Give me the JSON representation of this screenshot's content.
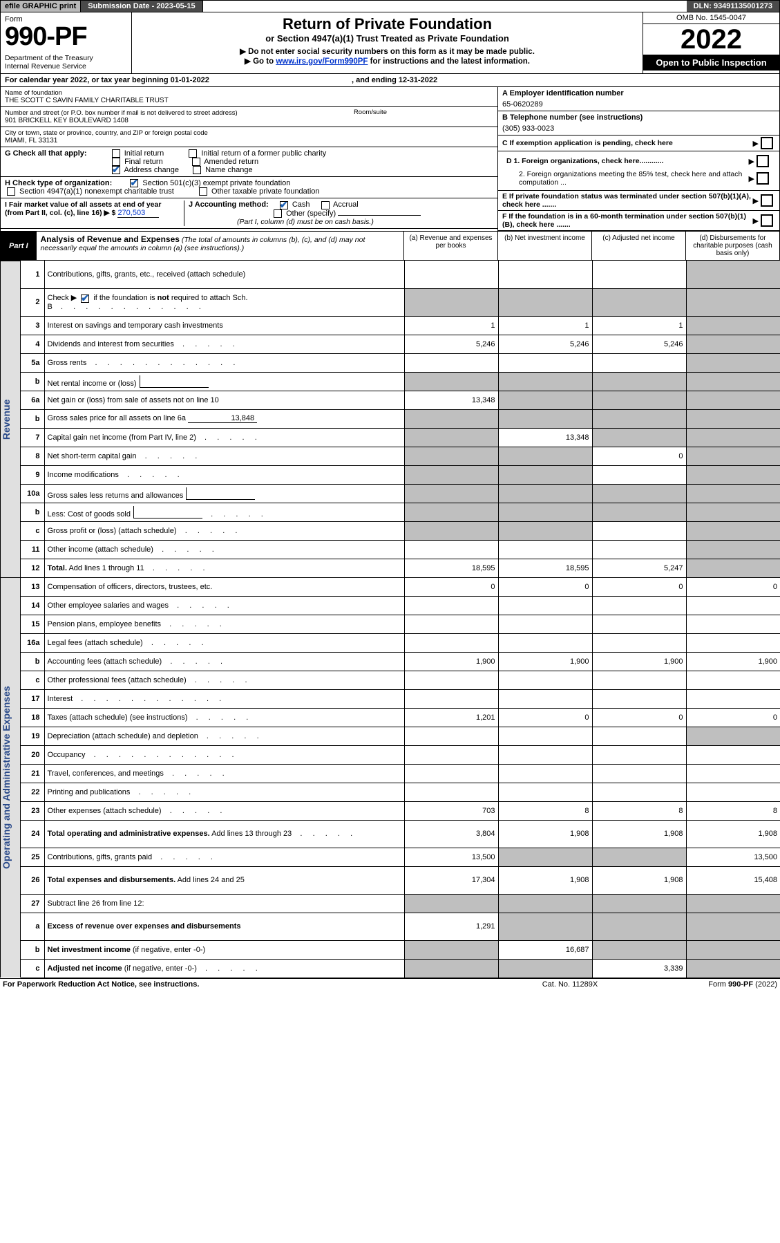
{
  "colors": {
    "topbar_grey": "#b9b9b9",
    "topbar_dark": "#4a4a4a",
    "black": "#000000",
    "white": "#ffffff",
    "link_blue": "#0033cc",
    "side_label_bg": "#e0e0e0",
    "side_label_text": "#2a4a8a",
    "shade_grey": "#bfbfbf",
    "check_blue": "#1a5fb4"
  },
  "topbar": {
    "efile": "efile GRAPHIC print",
    "submission": "Submission Date - 2023-05-15",
    "dln": "DLN: 93491135001273"
  },
  "header": {
    "form_word": "Form",
    "form_number": "990-PF",
    "dept": "Department of the Treasury\nInternal Revenue Service",
    "title": "Return of Private Foundation",
    "sub1": "or Section 4947(a)(1) Trust Treated as Private Foundation",
    "sub2": "▶ Do not enter social security numbers on this form as it may be made public.",
    "sub3_pre": "▶ Go to ",
    "sub3_link": "www.irs.gov/Form990PF",
    "sub3_post": " for instructions and the latest information.",
    "omb": "OMB No. 1545-0047",
    "year": "2022",
    "opentopublic": "Open to Public Inspection"
  },
  "calyear": {
    "line": "For calendar year 2022, or tax year beginning 01-01-2022",
    "ending": ", and ending 12-31-2022"
  },
  "entity": {
    "name_label": "Name of foundation",
    "name": "THE SCOTT C SAVIN FAMILY CHARITABLE TRUST",
    "addr_label": "Number and street (or P.O. box number if mail is not delivered to street address)",
    "room_label": "Room/suite",
    "addr": "901 BRICKELL KEY BOULEVARD 1408",
    "city_label": "City or town, state or province, country, and ZIP or foreign postal code",
    "city": "MIAMI, FL  33131",
    "A_label": "A Employer identification number",
    "A_val": "65-0620289",
    "B_label": "B Telephone number (see instructions)",
    "B_val": "(305) 933-0023",
    "C_label": "C If exemption application is pending, check here"
  },
  "G": {
    "label": "G Check all that apply:",
    "initial_return": "Initial return",
    "initial_former": "Initial return of a former public charity",
    "final_return": "Final return",
    "amended_return": "Amended return",
    "address_change": "Address change",
    "name_change": "Name change"
  },
  "H": {
    "label": "H Check type of organization:",
    "opt1": "Section 501(c)(3) exempt private foundation",
    "opt2": "Section 4947(a)(1) nonexempt charitable trust",
    "opt3": "Other taxable private foundation"
  },
  "IJ": {
    "I_label": "I Fair market value of all assets at end of year (from Part II, col. (c), line 16) ▶ $",
    "I_val": "270,503",
    "J_label": "J Accounting method:",
    "J_cash": "Cash",
    "J_accrual": "Accrual",
    "J_other": "Other (specify)",
    "J_note": "(Part I, column (d) must be on cash basis.)"
  },
  "D": {
    "d1": "D 1. Foreign organizations, check here............",
    "d2": "2. Foreign organizations meeting the 85% test, check here and attach computation ..."
  },
  "E": {
    "txt": "E  If private foundation status was terminated under section 507(b)(1)(A), check here ......."
  },
  "F": {
    "txt": "F  If the foundation is in a 60-month termination under section 507(b)(1)(B), check here ......."
  },
  "part1": {
    "label": "Part I",
    "title": "Analysis of Revenue and Expenses",
    "note": "(The total of amounts in columns (b), (c), and (d) may not necessarily equal the amounts in column (a) (see instructions).)",
    "col_a": "(a)   Revenue and expenses per books",
    "col_b": "(b)   Net investment income",
    "col_c": "(c)   Adjusted net income",
    "col_d": "(d)   Disbursements for charitable purposes (cash basis only)"
  },
  "sidelabels": {
    "revenue": "Revenue",
    "expenses": "Operating and Administrative Expenses"
  },
  "rows": [
    {
      "n": "1",
      "desc": "Contributions, gifts, grants, etc., received (attach schedule)",
      "a": "",
      "b": "",
      "c": "",
      "d": "",
      "d_shade": true,
      "tall": true
    },
    {
      "n": "2",
      "desc_html": "Check ▶ [CB_CHECKED] if the foundation is <b>not</b> required to attach Sch. B",
      "a": "",
      "b": "",
      "c": "",
      "d": "",
      "a_shade": true,
      "b_shade": true,
      "c_shade": true,
      "d_shade": true,
      "tall": true,
      "dots_long": true
    },
    {
      "n": "3",
      "desc": "Interest on savings and temporary cash investments",
      "a": "1",
      "b": "1",
      "c": "1",
      "d": "",
      "d_shade": true
    },
    {
      "n": "4",
      "desc": "Dividends and interest from securities",
      "a": "5,246",
      "b": "5,246",
      "c": "5,246",
      "d": "",
      "d_shade": true,
      "dots": true
    },
    {
      "n": "5a",
      "desc": "Gross rents",
      "a": "",
      "b": "",
      "c": "",
      "d": "",
      "d_shade": true,
      "dots_long": true
    },
    {
      "n": "b",
      "desc": "Net rental income or (loss)",
      "a": "",
      "b": "",
      "c": "",
      "d": "",
      "a_shade": true,
      "b_shade": true,
      "c_shade": true,
      "d_shade": true,
      "innerbox": true
    },
    {
      "n": "6a",
      "desc": "Net gain or (loss) from sale of assets not on line 10",
      "a": "13,348",
      "b": "",
      "c": "",
      "d": "",
      "b_shade": true,
      "c_shade": true,
      "d_shade": true
    },
    {
      "n": "b",
      "desc": "Gross sales price for all assets on line 6a",
      "a": "",
      "b": "",
      "c": "",
      "d": "",
      "a_shade": true,
      "b_shade": true,
      "c_shade": true,
      "d_shade": true,
      "inline_val": "13,848",
      "inline_underline": true
    },
    {
      "n": "7",
      "desc": "Capital gain net income (from Part IV, line 2)",
      "a": "",
      "b": "13,348",
      "c": "",
      "d": "",
      "a_shade": true,
      "c_shade": true,
      "d_shade": true,
      "dots": true
    },
    {
      "n": "8",
      "desc": "Net short-term capital gain",
      "a": "",
      "b": "",
      "c": "0",
      "d": "",
      "a_shade": true,
      "b_shade": true,
      "d_shade": true,
      "dots": true
    },
    {
      "n": "9",
      "desc": "Income modifications",
      "a": "",
      "b": "",
      "c": "",
      "d": "",
      "a_shade": true,
      "b_shade": true,
      "d_shade": true,
      "dots": true
    },
    {
      "n": "10a",
      "desc": "Gross sales less returns and allowances",
      "a": "",
      "b": "",
      "c": "",
      "d": "",
      "a_shade": true,
      "b_shade": true,
      "c_shade": true,
      "d_shade": true,
      "innerbox": true
    },
    {
      "n": "b",
      "desc": "Less: Cost of goods sold",
      "a": "",
      "b": "",
      "c": "",
      "d": "",
      "a_shade": true,
      "b_shade": true,
      "c_shade": true,
      "d_shade": true,
      "innerbox": true,
      "dots": true
    },
    {
      "n": "c",
      "desc": "Gross profit or (loss) (attach schedule)",
      "a": "",
      "b": "",
      "c": "",
      "d": "",
      "a_shade": true,
      "b_shade": true,
      "d_shade": true,
      "dots": true
    },
    {
      "n": "11",
      "desc": "Other income (attach schedule)",
      "a": "",
      "b": "",
      "c": "",
      "d": "",
      "d_shade": true,
      "dots": true
    },
    {
      "n": "12",
      "desc": "<b>Total.</b> Add lines 1 through 11",
      "a": "18,595",
      "b": "18,595",
      "c": "5,247",
      "d": "",
      "d_shade": true,
      "dots": true,
      "bold": true
    },
    {
      "n": "13",
      "desc": "Compensation of officers, directors, trustees, etc.",
      "a": "0",
      "b": "0",
      "c": "0",
      "d": "0",
      "sec": "exp"
    },
    {
      "n": "14",
      "desc": "Other employee salaries and wages",
      "a": "",
      "b": "",
      "c": "",
      "d": "",
      "dots": true
    },
    {
      "n": "15",
      "desc": "Pension plans, employee benefits",
      "a": "",
      "b": "",
      "c": "",
      "d": "",
      "dots": true
    },
    {
      "n": "16a",
      "desc": "Legal fees (attach schedule)",
      "a": "",
      "b": "",
      "c": "",
      "d": "",
      "dots": true
    },
    {
      "n": "b",
      "desc": "Accounting fees (attach schedule)",
      "a": "1,900",
      "b": "1,900",
      "c": "1,900",
      "d": "1,900",
      "dots": true
    },
    {
      "n": "c",
      "desc": "Other professional fees (attach schedule)",
      "a": "",
      "b": "",
      "c": "",
      "d": "",
      "dots": true
    },
    {
      "n": "17",
      "desc": "Interest",
      "a": "",
      "b": "",
      "c": "",
      "d": "",
      "dots_long": true
    },
    {
      "n": "18",
      "desc": "Taxes (attach schedule) (see instructions)",
      "a": "1,201",
      "b": "0",
      "c": "0",
      "d": "0",
      "dots": true
    },
    {
      "n": "19",
      "desc": "Depreciation (attach schedule) and depletion",
      "a": "",
      "b": "",
      "c": "",
      "d": "",
      "d_shade": true,
      "dots": true
    },
    {
      "n": "20",
      "desc": "Occupancy",
      "a": "",
      "b": "",
      "c": "",
      "d": "",
      "dots_long": true
    },
    {
      "n": "21",
      "desc": "Travel, conferences, and meetings",
      "a": "",
      "b": "",
      "c": "",
      "d": "",
      "dots": true
    },
    {
      "n": "22",
      "desc": "Printing and publications",
      "a": "",
      "b": "",
      "c": "",
      "d": "",
      "dots": true
    },
    {
      "n": "23",
      "desc": "Other expenses (attach schedule)",
      "a": "703",
      "b": "8",
      "c": "8",
      "d": "8",
      "dots": true
    },
    {
      "n": "24",
      "desc": "<b>Total operating and administrative expenses.</b> Add lines 13 through 23",
      "a": "3,804",
      "b": "1,908",
      "c": "1,908",
      "d": "1,908",
      "dots": true,
      "tall": true
    },
    {
      "n": "25",
      "desc": "Contributions, gifts, grants paid",
      "a": "13,500",
      "b": "",
      "c": "",
      "d": "13,500",
      "b_shade": true,
      "c_shade": true,
      "dots": true
    },
    {
      "n": "26",
      "desc": "<b>Total expenses and disbursements.</b> Add lines 24 and 25",
      "a": "17,304",
      "b": "1,908",
      "c": "1,908",
      "d": "15,408",
      "tall": true
    },
    {
      "n": "27",
      "desc": "Subtract line 26 from line 12:",
      "a": "",
      "b": "",
      "c": "",
      "d": "",
      "a_shade": true,
      "b_shade": true,
      "c_shade": true,
      "d_shade": true
    },
    {
      "n": "a",
      "desc": "<b>Excess of revenue over expenses and disbursements</b>",
      "a": "1,291",
      "b": "",
      "c": "",
      "d": "",
      "b_shade": true,
      "c_shade": true,
      "d_shade": true,
      "tall": true
    },
    {
      "n": "b",
      "desc": "<b>Net investment income</b> (if negative, enter -0-)",
      "a": "",
      "b": "16,687",
      "c": "",
      "d": "",
      "a_shade": true,
      "c_shade": true,
      "d_shade": true
    },
    {
      "n": "c",
      "desc": "<b>Adjusted net income</b> (if negative, enter -0-)",
      "a": "",
      "b": "",
      "c": "3,339",
      "d": "",
      "a_shade": true,
      "b_shade": true,
      "d_shade": true,
      "dots": true
    }
  ],
  "footer": {
    "left": "For Paperwork Reduction Act Notice, see instructions.",
    "mid": "Cat. No. 11289X",
    "right": "Form 990-PF (2022)"
  }
}
